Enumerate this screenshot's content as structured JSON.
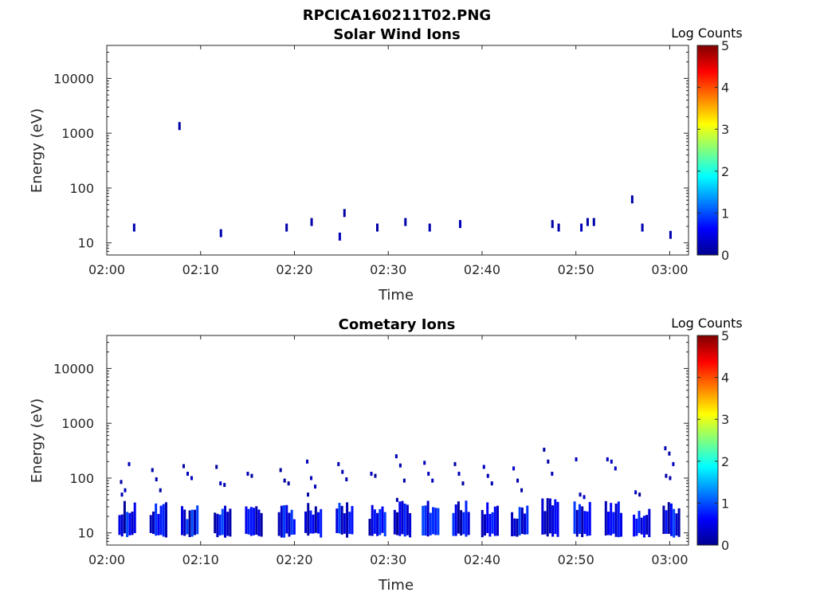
{
  "figure": {
    "title": "RPCICA160211T02.PNG"
  },
  "colors": {
    "axis": "#262626",
    "background": "#ffffff",
    "colormap": "jet"
  },
  "chart_data": [
    {
      "type": "heatmap",
      "title": "Solar Wind Ions",
      "xlabel": "Time",
      "ylabel": "Energy (eV)",
      "xlim": [
        "02:00",
        "03:02"
      ],
      "ylim": [
        6,
        40000
      ],
      "yscale": "log",
      "xticks": [
        "02:00",
        "02:10",
        "02:20",
        "02:30",
        "02:40",
        "02:50",
        "03:00"
      ],
      "yticks": [
        "10",
        "100",
        "1000",
        "10000"
      ],
      "colorbar": {
        "label": "Log Counts",
        "range": [
          0,
          5
        ],
        "ticks": [
          "0",
          "1",
          "2",
          "3",
          "4",
          "5"
        ]
      },
      "points": [
        {
          "time": "02:02:55",
          "energy": 19,
          "level": 0.25
        },
        {
          "time": "02:07:45",
          "energy": 1350,
          "level": 0.2
        },
        {
          "time": "02:12:10",
          "energy": 15,
          "level": 0.25
        },
        {
          "time": "02:19:10",
          "energy": 19,
          "level": 0.2
        },
        {
          "time": "02:21:50",
          "energy": 24,
          "level": 0.2
        },
        {
          "time": "02:24:50",
          "energy": 13,
          "level": 0.3
        },
        {
          "time": "02:25:20",
          "energy": 35,
          "level": 0.2
        },
        {
          "time": "02:28:50",
          "energy": 19,
          "level": 0.2
        },
        {
          "time": "02:31:50",
          "energy": 24,
          "level": 0.2
        },
        {
          "time": "02:34:25",
          "energy": 19,
          "level": 0.25
        },
        {
          "time": "02:37:40",
          "energy": 22,
          "level": 0.3
        },
        {
          "time": "02:47:30",
          "energy": 22,
          "level": 0.2
        },
        {
          "time": "02:48:10",
          "energy": 19,
          "level": 0.2
        },
        {
          "time": "02:50:35",
          "energy": 19,
          "level": 0.3
        },
        {
          "time": "02:51:15",
          "energy": 24,
          "level": 0.2
        },
        {
          "time": "02:51:55",
          "energy": 24,
          "level": 0.2
        },
        {
          "time": "02:56:00",
          "energy": 62,
          "level": 0.2
        },
        {
          "time": "02:57:05",
          "energy": 19,
          "level": 0.25
        },
        {
          "time": "03:00:05",
          "energy": 14,
          "level": 0.25
        }
      ]
    },
    {
      "type": "heatmap",
      "title": "Cometary Ions",
      "xlabel": "Time",
      "ylabel": "Energy (eV)",
      "xlim": [
        "02:00",
        "03:02"
      ],
      "ylim": [
        6,
        40000
      ],
      "yscale": "log",
      "xticks": [
        "02:00",
        "02:10",
        "02:20",
        "02:30",
        "02:40",
        "02:50",
        "03:00"
      ],
      "yticks": [
        "10",
        "100",
        "1000",
        "10000"
      ],
      "colorbar": {
        "label": "Log Counts",
        "range": [
          0,
          5
        ],
        "ticks": [
          "0",
          "1",
          "2",
          "3",
          "4",
          "5"
        ]
      },
      "bursts": [
        {
          "time": "02:02:10",
          "low_energy_max": 30,
          "high_points": [
            85,
            60,
            180,
            50
          ]
        },
        {
          "time": "02:05:30",
          "low_energy_max": 30,
          "high_points": [
            140,
            95,
            60
          ]
        },
        {
          "time": "02:08:50",
          "low_energy_max": 25,
          "high_points": [
            165,
            120,
            100
          ]
        },
        {
          "time": "02:12:20",
          "low_energy_max": 25,
          "high_points": [
            160,
            80,
            75
          ]
        },
        {
          "time": "02:15:40",
          "low_energy_max": 25,
          "high_points": [
            120,
            110
          ]
        },
        {
          "time": "02:19:10",
          "low_energy_max": 25,
          "high_points": [
            140,
            90,
            80
          ]
        },
        {
          "time": "02:22:00",
          "low_energy_max": 30,
          "high_points": [
            200,
            100,
            70,
            50
          ]
        },
        {
          "time": "02:25:20",
          "low_energy_max": 30,
          "high_points": [
            180,
            130,
            95
          ]
        },
        {
          "time": "02:28:50",
          "low_energy_max": 25,
          "high_points": [
            120,
            110
          ]
        },
        {
          "time": "02:31:30",
          "low_energy_max": 30,
          "high_points": [
            250,
            170,
            90,
            40
          ]
        },
        {
          "time": "02:34:30",
          "low_energy_max": 30,
          "high_points": [
            190,
            120,
            90
          ]
        },
        {
          "time": "02:37:45",
          "low_energy_max": 30,
          "high_points": [
            180,
            120,
            80
          ]
        },
        {
          "time": "02:40:50",
          "low_energy_max": 30,
          "high_points": [
            160,
            110,
            80
          ]
        },
        {
          "time": "02:44:00",
          "low_energy_max": 25,
          "high_points": [
            150,
            90,
            60
          ]
        },
        {
          "time": "02:47:15",
          "low_energy_max": 35,
          "high_points": [
            330,
            200,
            120
          ]
        },
        {
          "time": "02:50:40",
          "low_energy_max": 30,
          "high_points": [
            220,
            50,
            45
          ]
        },
        {
          "time": "02:54:00",
          "low_energy_max": 30,
          "high_points": [
            220,
            200,
            150
          ]
        },
        {
          "time": "02:57:00",
          "low_energy_max": 25,
          "high_points": [
            55,
            50
          ]
        },
        {
          "time": "03:00:10",
          "low_energy_max": 30,
          "high_points": [
            350,
            280,
            180,
            110,
            100
          ]
        }
      ]
    }
  ]
}
